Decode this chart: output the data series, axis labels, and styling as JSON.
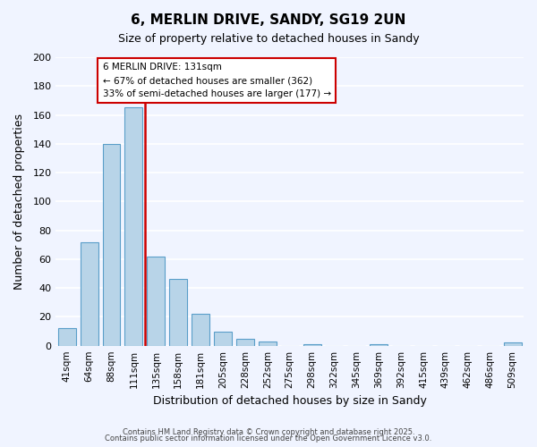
{
  "title": "6, MERLIN DRIVE, SANDY, SG19 2UN",
  "subtitle": "Size of property relative to detached houses in Sandy",
  "xlabel": "Distribution of detached houses by size in Sandy",
  "ylabel": "Number of detached properties",
  "bar_color": "#b8d4e8",
  "bar_edge_color": "#5a9ec9",
  "background_color": "#f0f4ff",
  "grid_color": "#ffffff",
  "categories": [
    "41sqm",
    "64sqm",
    "88sqm",
    "111sqm",
    "135sqm",
    "158sqm",
    "181sqm",
    "205sqm",
    "228sqm",
    "252sqm",
    "275sqm",
    "298sqm",
    "322sqm",
    "345sqm",
    "369sqm",
    "392sqm",
    "415sqm",
    "439sqm",
    "462sqm",
    "486sqm",
    "509sqm"
  ],
  "values": [
    12,
    72,
    140,
    165,
    62,
    46,
    22,
    10,
    5,
    3,
    0,
    1,
    0,
    0,
    1,
    0,
    0,
    0,
    0,
    0,
    2
  ],
  "redline_x": 3.5,
  "annotation_title": "6 MERLIN DRIVE: 131sqm",
  "annotation_line1": "← 67% of detached houses are smaller (362)",
  "annotation_line2": "33% of semi-detached houses are larger (177) →",
  "annotation_box_color": "#ffffff",
  "annotation_border_color": "#cc0000",
  "redline_color": "#cc0000",
  "ylim": [
    0,
    200
  ],
  "yticks": [
    0,
    20,
    40,
    60,
    80,
    100,
    120,
    140,
    160,
    180,
    200
  ],
  "footer1": "Contains HM Land Registry data © Crown copyright and database right 2025.",
  "footer2": "Contains public sector information licensed under the Open Government Licence v3.0."
}
